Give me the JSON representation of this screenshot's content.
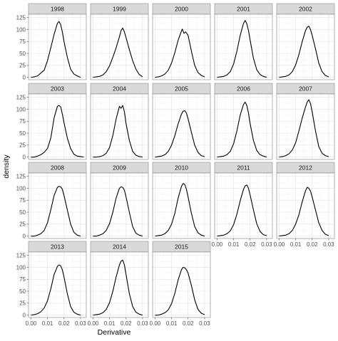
{
  "chart_data": {
    "type": "line",
    "facet": "year",
    "xlabel": "Derivative",
    "ylabel": "density",
    "xlim": [
      -0.0015,
      0.0335
    ],
    "ylim": [
      -5,
      132
    ],
    "x_ticks": [
      0.0,
      0.01,
      0.02,
      0.03
    ],
    "x_tick_labels": [
      "0.00",
      "0.01",
      "0.02",
      "0.03"
    ],
    "y_ticks": [
      0,
      25,
      50,
      75,
      100,
      125
    ],
    "y_tick_labels": [
      "0",
      "25",
      "50",
      "75",
      "100",
      "125"
    ],
    "grid": true,
    "line_color": "#000000",
    "strip_color": "#d9d9d9",
    "series": [
      {
        "name": "1998",
        "x": [
          0.0,
          0.002,
          0.004,
          0.006,
          0.008,
          0.01,
          0.012,
          0.014,
          0.016,
          0.017,
          0.018,
          0.019,
          0.02,
          0.022,
          0.024,
          0.026,
          0.028,
          0.03
        ],
        "y": [
          0,
          1,
          3,
          9,
          15,
          35,
          62,
          90,
          113,
          117,
          110,
          95,
          75,
          42,
          17,
          7,
          3,
          0
        ]
      },
      {
        "name": "1999",
        "x": [
          0.0,
          0.002,
          0.004,
          0.006,
          0.008,
          0.01,
          0.012,
          0.014,
          0.016,
          0.017,
          0.018,
          0.019,
          0.02,
          0.022,
          0.024,
          0.026,
          0.028,
          0.03
        ],
        "y": [
          0,
          1,
          2,
          5,
          12,
          24,
          42,
          62,
          85,
          98,
          103,
          95,
          83,
          58,
          35,
          17,
          6,
          1
        ]
      },
      {
        "name": "2000",
        "x": [
          0.0,
          0.002,
          0.004,
          0.006,
          0.008,
          0.01,
          0.012,
          0.014,
          0.016,
          0.0165,
          0.0175,
          0.0185,
          0.02,
          0.022,
          0.024,
          0.026,
          0.028,
          0.03
        ],
        "y": [
          0,
          1,
          3,
          7,
          15,
          30,
          52,
          78,
          97,
          101,
          92,
          95,
          88,
          55,
          25,
          10,
          4,
          1
        ]
      },
      {
        "name": "2001",
        "x": [
          0.0,
          0.002,
          0.004,
          0.006,
          0.008,
          0.01,
          0.012,
          0.014,
          0.016,
          0.017,
          0.018,
          0.019,
          0.02,
          0.022,
          0.024,
          0.026,
          0.028,
          0.03
        ],
        "y": [
          0,
          1,
          2,
          5,
          12,
          28,
          55,
          88,
          113,
          119,
          112,
          98,
          78,
          40,
          16,
          6,
          2,
          0
        ]
      },
      {
        "name": "2002",
        "x": [
          0.0,
          0.002,
          0.004,
          0.006,
          0.008,
          0.01,
          0.012,
          0.014,
          0.016,
          0.017,
          0.018,
          0.019,
          0.02,
          0.022,
          0.024,
          0.026,
          0.028,
          0.03
        ],
        "y": [
          0,
          1,
          2,
          5,
          12,
          26,
          48,
          75,
          98,
          105,
          107,
          100,
          88,
          60,
          30,
          12,
          4,
          1
        ]
      },
      {
        "name": "2003",
        "x": [
          0.0,
          0.002,
          0.004,
          0.006,
          0.008,
          0.01,
          0.012,
          0.014,
          0.016,
          0.017,
          0.018,
          0.019,
          0.02,
          0.022,
          0.024,
          0.026,
          0.028,
          0.03,
          0.032
        ],
        "y": [
          0,
          0,
          2,
          5,
          10,
          18,
          40,
          82,
          106,
          108,
          105,
          90,
          72,
          40,
          18,
          6,
          2,
          1,
          0
        ]
      },
      {
        "name": "2004",
        "x": [
          0.0,
          0.002,
          0.004,
          0.006,
          0.008,
          0.01,
          0.012,
          0.014,
          0.016,
          0.017,
          0.018,
          0.019,
          0.02,
          0.022,
          0.024,
          0.026,
          0.028,
          0.03
        ],
        "y": [
          0,
          0,
          1,
          3,
          8,
          20,
          45,
          80,
          106,
          102,
          108,
          95,
          70,
          35,
          12,
          4,
          1,
          0
        ]
      },
      {
        "name": "2005",
        "x": [
          0.0,
          0.002,
          0.004,
          0.006,
          0.008,
          0.01,
          0.012,
          0.014,
          0.016,
          0.017,
          0.018,
          0.019,
          0.02,
          0.022,
          0.024,
          0.026,
          0.028,
          0.03
        ],
        "y": [
          0,
          1,
          2,
          5,
          12,
          25,
          45,
          70,
          90,
          96,
          97,
          92,
          80,
          52,
          25,
          10,
          3,
          1
        ]
      },
      {
        "name": "2006",
        "x": [
          0.0,
          0.002,
          0.004,
          0.006,
          0.008,
          0.01,
          0.012,
          0.014,
          0.016,
          0.017,
          0.018,
          0.019,
          0.02,
          0.022,
          0.024,
          0.026,
          0.028,
          0.03
        ],
        "y": [
          0,
          1,
          2,
          5,
          12,
          28,
          55,
          88,
          110,
          115,
          108,
          92,
          70,
          35,
          14,
          5,
          2,
          0
        ]
      },
      {
        "name": "2007",
        "x": [
          0.0,
          0.002,
          0.004,
          0.006,
          0.008,
          0.01,
          0.012,
          0.014,
          0.016,
          0.017,
          0.018,
          0.019,
          0.02,
          0.022,
          0.024,
          0.026,
          0.028,
          0.03
        ],
        "y": [
          0,
          1,
          3,
          7,
          15,
          30,
          55,
          82,
          105,
          115,
          120,
          112,
          95,
          55,
          22,
          8,
          3,
          1
        ]
      },
      {
        "name": "2008",
        "x": [
          0.0,
          0.002,
          0.004,
          0.006,
          0.008,
          0.01,
          0.012,
          0.014,
          0.016,
          0.017,
          0.018,
          0.019,
          0.02,
          0.022,
          0.024,
          0.026,
          0.028,
          0.03
        ],
        "y": [
          0,
          0,
          2,
          5,
          12,
          28,
          55,
          85,
          102,
          104,
          103,
          98,
          85,
          55,
          25,
          8,
          2,
          0
        ]
      },
      {
        "name": "2009",
        "x": [
          0.0,
          0.002,
          0.004,
          0.006,
          0.008,
          0.01,
          0.012,
          0.014,
          0.016,
          0.017,
          0.018,
          0.019,
          0.02,
          0.022,
          0.024,
          0.026,
          0.028,
          0.03
        ],
        "y": [
          0,
          0,
          2,
          5,
          12,
          26,
          50,
          80,
          100,
          103,
          102,
          96,
          82,
          50,
          20,
          6,
          2,
          0
        ]
      },
      {
        "name": "2010",
        "x": [
          0.0,
          0.002,
          0.004,
          0.006,
          0.008,
          0.01,
          0.012,
          0.014,
          0.016,
          0.017,
          0.018,
          0.019,
          0.02,
          0.022,
          0.024,
          0.026,
          0.028,
          0.03
        ],
        "y": [
          0,
          1,
          2,
          5,
          12,
          25,
          48,
          80,
          104,
          110,
          108,
          98,
          82,
          48,
          20,
          7,
          2,
          0
        ]
      },
      {
        "name": "2011",
        "x": [
          0.0,
          0.002,
          0.004,
          0.006,
          0.008,
          0.01,
          0.012,
          0.014,
          0.016,
          0.017,
          0.018,
          0.019,
          0.02,
          0.022,
          0.024,
          0.026,
          0.028,
          0.03
        ],
        "y": [
          0,
          1,
          2,
          5,
          11,
          24,
          46,
          74,
          98,
          105,
          107,
          100,
          86,
          55,
          26,
          10,
          3,
          1
        ]
      },
      {
        "name": "2012",
        "x": [
          0.0,
          0.002,
          0.004,
          0.006,
          0.008,
          0.01,
          0.012,
          0.014,
          0.016,
          0.017,
          0.018,
          0.019,
          0.02,
          0.022,
          0.024,
          0.026,
          0.028,
          0.03
        ],
        "y": [
          0,
          1,
          2,
          5,
          12,
          25,
          45,
          72,
          95,
          102,
          100,
          94,
          82,
          55,
          28,
          12,
          4,
          1
        ]
      },
      {
        "name": "2013",
        "x": [
          0.0,
          0.002,
          0.004,
          0.006,
          0.008,
          0.01,
          0.012,
          0.014,
          0.016,
          0.017,
          0.018,
          0.019,
          0.02,
          0.022,
          0.024,
          0.026,
          0.028,
          0.03
        ],
        "y": [
          0,
          1,
          3,
          7,
          15,
          30,
          55,
          85,
          102,
          105,
          103,
          95,
          80,
          45,
          18,
          6,
          2,
          0
        ]
      },
      {
        "name": "2014",
        "x": [
          0.0,
          0.002,
          0.004,
          0.006,
          0.008,
          0.01,
          0.012,
          0.014,
          0.016,
          0.017,
          0.018,
          0.019,
          0.02,
          0.022,
          0.024,
          0.026,
          0.028,
          0.03
        ],
        "y": [
          0,
          1,
          2,
          5,
          12,
          26,
          50,
          80,
          105,
          113,
          115,
          105,
          85,
          45,
          18,
          6,
          2,
          0
        ]
      },
      {
        "name": "2015",
        "x": [
          0.0,
          0.002,
          0.004,
          0.006,
          0.008,
          0.01,
          0.012,
          0.014,
          0.016,
          0.017,
          0.018,
          0.019,
          0.02,
          0.022,
          0.024,
          0.026,
          0.028,
          0.03
        ],
        "y": [
          0,
          0,
          2,
          5,
          11,
          24,
          46,
          74,
          95,
          100,
          99,
          95,
          88,
          62,
          32,
          12,
          4,
          1
        ]
      }
    ]
  }
}
